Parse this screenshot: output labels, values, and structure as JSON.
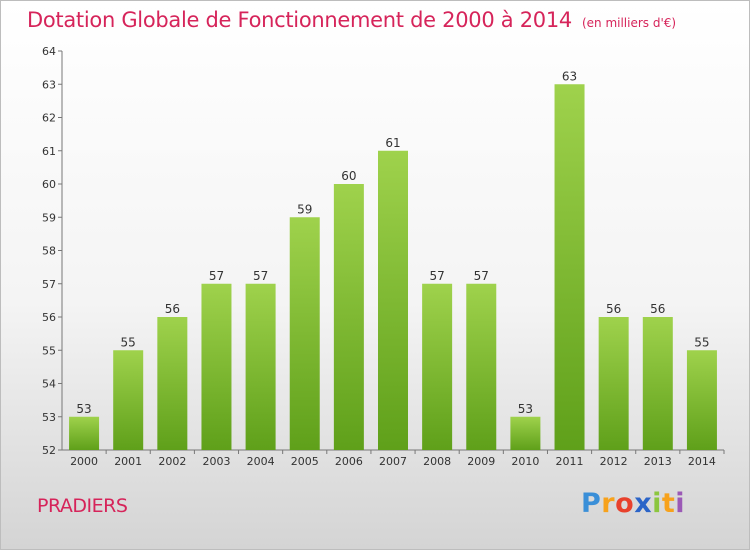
{
  "title": "Dotation Globale de Fonctionnement de 2000 à 2014",
  "subtitle": "(en milliers d'€)",
  "place_name": "PRADIERS",
  "logo": {
    "letters": [
      "P",
      "r",
      "o",
      "x",
      "i",
      "t",
      "i"
    ],
    "colors": [
      "#3a8fd8",
      "#f7a21c",
      "#e8412c",
      "#2b64c8",
      "#8cc63f",
      "#f7a21c",
      "#9b59b6"
    ]
  },
  "colors": {
    "bar_top": "#9fd24c",
    "bar_bottom": "#5fa01a",
    "title": "#d6245a"
  },
  "chart_data": {
    "type": "bar",
    "title": "Dotation Globale de Fonctionnement de 2000 à 2014",
    "subtitle": "(en milliers d'€)",
    "categories": [
      "2000",
      "2001",
      "2002",
      "2003",
      "2004",
      "2005",
      "2006",
      "2007",
      "2008",
      "2009",
      "2010",
      "2011",
      "2012",
      "2013",
      "2014"
    ],
    "values": [
      53,
      55,
      56,
      57,
      57,
      59,
      60,
      61,
      57,
      57,
      53,
      63,
      56,
      56,
      55
    ],
    "ylim": [
      52,
      64
    ],
    "yticks": [
      52,
      53,
      54,
      55,
      56,
      57,
      58,
      59,
      60,
      61,
      62,
      63,
      64
    ],
    "grid": false,
    "xlabel": "",
    "ylabel": ""
  }
}
